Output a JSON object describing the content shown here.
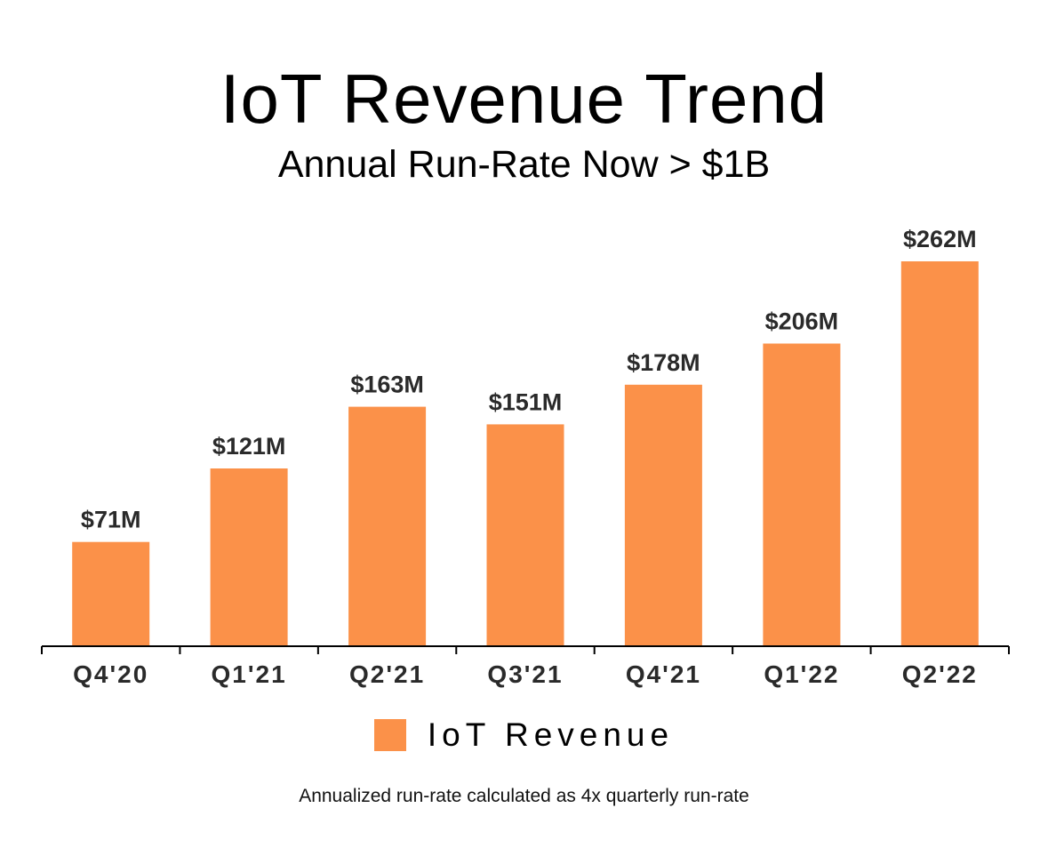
{
  "colors": {
    "bar": "#FB9149",
    "axis": "#000000",
    "text": "#2a2a2a"
  },
  "chart_data": {
    "type": "bar",
    "title": "IoT Revenue Trend",
    "subtitle": "Annual Run-Rate Now > $1B",
    "categories": [
      "Q4'20",
      "Q1'21",
      "Q2'21",
      "Q3'21",
      "Q4'21",
      "Q1'22",
      "Q2'22"
    ],
    "series": [
      {
        "name": "IoT Revenue",
        "values": [
          71,
          121,
          163,
          151,
          178,
          206,
          262
        ],
        "labels": [
          "$71M",
          "$121M",
          "$163M",
          "$151M",
          "$178M",
          "$206M",
          "$262M"
        ]
      }
    ],
    "ylim": [
      0,
      262
    ],
    "grid": false,
    "legend": "bottom-center",
    "footnote": "Annualized run-rate calculated as 4x quarterly run-rate"
  }
}
